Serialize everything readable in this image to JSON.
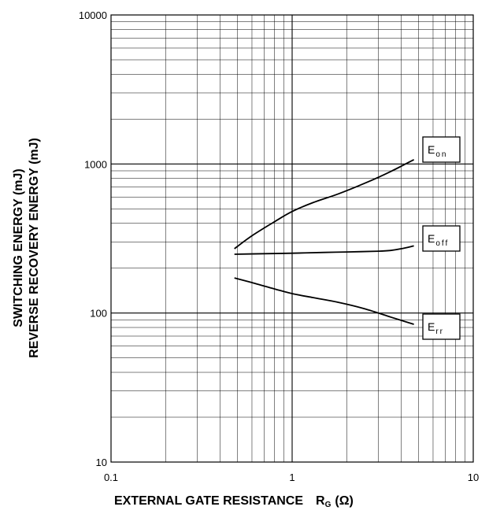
{
  "chart_data": {
    "type": "line",
    "title": "",
    "xlabel": "EXTERNAL GATE RESISTANCE",
    "xlabel_symbol": "R",
    "xlabel_subscript": "G",
    "xlabel_unit": "(Ω)",
    "ylabel_lines": [
      "SWITCHING ENERGY (mJ)",
      "REVERSE RECOVERY ENERGY (mJ)"
    ],
    "xscale": "log",
    "yscale": "log",
    "xlim": [
      0.1,
      10
    ],
    "ylim": [
      10,
      10000
    ],
    "x_tick_labels": [
      "0.1",
      "1",
      "10"
    ],
    "y_tick_labels": [
      "10",
      "100",
      "1000",
      "10000"
    ],
    "grid": true,
    "series": [
      {
        "name": "E on",
        "label_main": "E",
        "label_sub": "on",
        "color": "#000000",
        "x": [
          0.48,
          0.6,
          0.8,
          1.0,
          1.3,
          1.8,
          2.5,
          3.5,
          4.7
        ],
        "y": [
          270,
          330,
          410,
          480,
          550,
          630,
          740,
          890,
          1070
        ]
      },
      {
        "name": "E off",
        "label_main": "E",
        "label_sub": "off",
        "color": "#000000",
        "x": [
          0.48,
          0.7,
          1.0,
          1.5,
          2.0,
          3.0,
          3.5,
          4.0,
          4.7
        ],
        "y": [
          248,
          250,
          252,
          255,
          257,
          260,
          263,
          270,
          282
        ]
      },
      {
        "name": "E rr",
        "label_main": "E",
        "label_sub": "rr",
        "color": "#000000",
        "x": [
          0.48,
          0.6,
          0.8,
          1.0,
          1.3,
          1.8,
          2.5,
          3.5,
          4.7
        ],
        "y": [
          172,
          160,
          145,
          135,
          127,
          118,
          107,
          94,
          84
        ]
      }
    ]
  }
}
